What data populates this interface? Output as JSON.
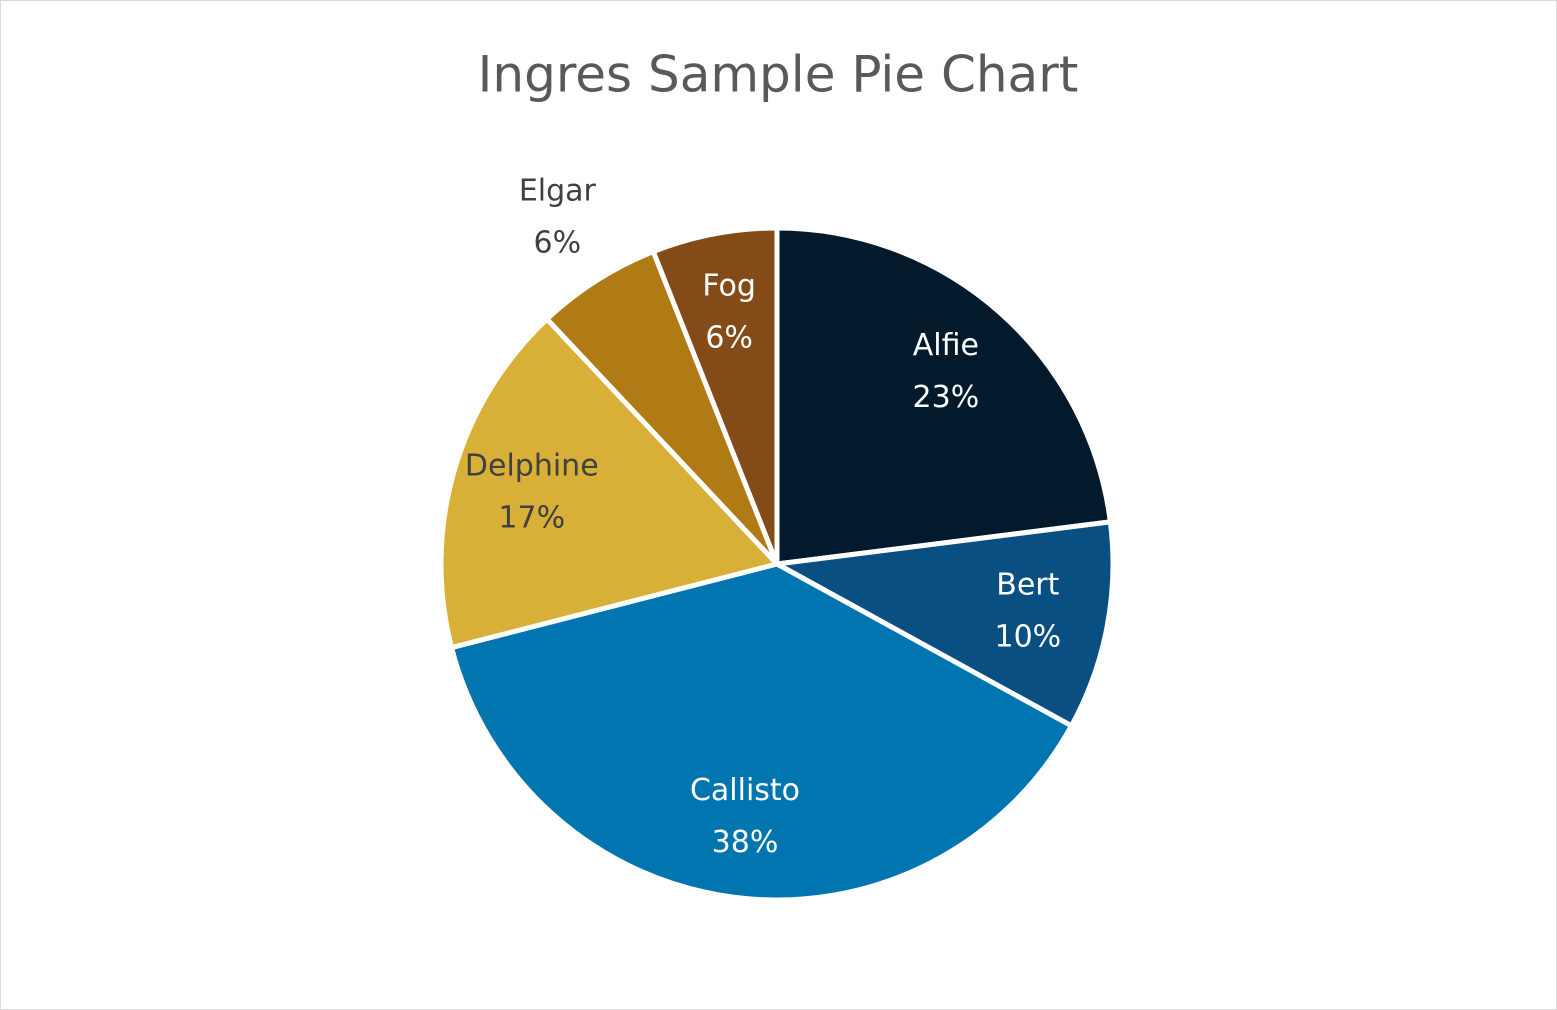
{
  "chart_data": {
    "type": "pie",
    "title": "Ingres Sample Pie Chart",
    "categories": [
      "Alfie",
      "Bert",
      "Callisto",
      "Delphine",
      "Elgar",
      "Fog"
    ],
    "values": [
      23,
      10,
      38,
      17,
      6,
      6
    ],
    "value_labels": [
      "23%",
      "10%",
      "38%",
      "17%",
      "6%",
      "6%"
    ],
    "colors": [
      "#021a2b",
      "#0a4f82",
      "#0075b0",
      "#d9b037",
      "#b07a15",
      "#824b17"
    ]
  }
}
